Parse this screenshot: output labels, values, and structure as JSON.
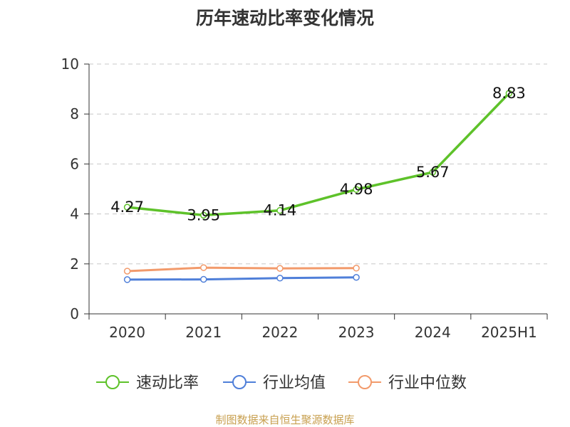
{
  "chart_data": {
    "type": "line",
    "title": "历年速动比率变化情况",
    "categories": [
      "2020",
      "2021",
      "2022",
      "2023",
      "2024",
      "2025H1"
    ],
    "yticks": [
      "0",
      "2",
      "4",
      "6",
      "8",
      "10"
    ],
    "ylim": [
      0,
      10
    ],
    "grid": true,
    "legend_position": "bottom",
    "series": [
      {
        "name": "速动比率",
        "color": "#5ec22a",
        "values": [
          4.27,
          3.95,
          4.14,
          4.98,
          5.67,
          8.83
        ],
        "labels": [
          "4.27",
          "3.95",
          "4.14",
          "4.98",
          "5.67",
          "8.83"
        ]
      },
      {
        "name": "行业均值",
        "color": "#4f7fd9",
        "values": [
          1.37,
          1.38,
          1.43,
          1.46,
          null,
          null
        ]
      },
      {
        "name": "行业中位数",
        "color": "#f29a6b",
        "values": [
          1.71,
          1.85,
          1.82,
          1.83,
          null,
          null
        ]
      }
    ]
  },
  "footer": {
    "source": "制图数据来自恒生聚源数据库"
  }
}
